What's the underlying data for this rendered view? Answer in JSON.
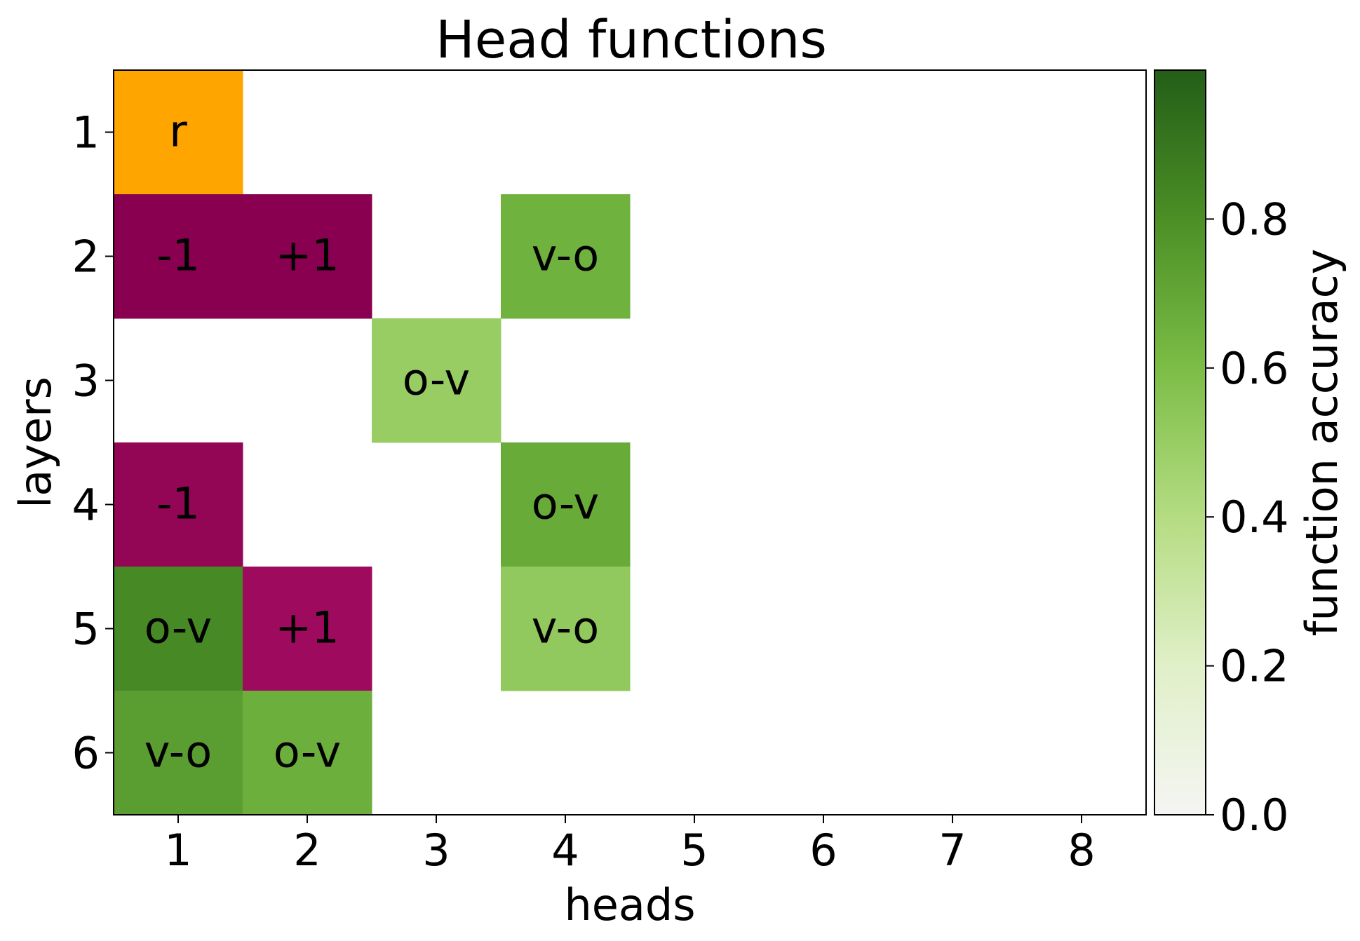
{
  "chart_data": {
    "type": "heatmap",
    "title": "Head functions",
    "xlabel": "heads",
    "ylabel": "layers",
    "x_ticks": [
      "1",
      "2",
      "3",
      "4",
      "5",
      "6",
      "7",
      "8"
    ],
    "y_ticks": [
      "1",
      "2",
      "3",
      "4",
      "5",
      "6"
    ],
    "colorbar": {
      "label": "function accuracy",
      "range": [
        0.0,
        1.0
      ],
      "ticks": [
        {
          "value": 0.0,
          "label": "0.0"
        },
        {
          "value": 0.2,
          "label": "0.2"
        },
        {
          "value": 0.4,
          "label": "0.4"
        },
        {
          "value": 0.6,
          "label": "0.6"
        },
        {
          "value": 0.8,
          "label": "0.8"
        }
      ],
      "stops": [
        {
          "v": 0.0,
          "color": "#f5f5f3"
        },
        {
          "v": 0.2,
          "color": "#e0f0c8"
        },
        {
          "v": 0.4,
          "color": "#b4dc82"
        },
        {
          "v": 0.6,
          "color": "#7cbd46"
        },
        {
          "v": 0.8,
          "color": "#4b8f26"
        },
        {
          "v": 1.0,
          "color": "#245e18"
        }
      ]
    },
    "category_colors": {
      "r": "#ffa500",
      "-1": "#8e0152",
      "+1": "#8e0152"
    },
    "cells": [
      {
        "layer": 1,
        "head": 1,
        "label": "r",
        "kind": "category",
        "color": "#ffa500"
      },
      {
        "layer": 2,
        "head": 1,
        "label": "-1",
        "kind": "category",
        "color": "#8a0050"
      },
      {
        "layer": 2,
        "head": 2,
        "label": "+1",
        "kind": "category",
        "color": "#8a0050"
      },
      {
        "layer": 2,
        "head": 4,
        "label": "v-o",
        "kind": "accuracy",
        "value": 0.65
      },
      {
        "layer": 3,
        "head": 3,
        "label": "o-v",
        "kind": "accuracy",
        "value": 0.5
      },
      {
        "layer": 4,
        "head": 1,
        "label": "-1",
        "kind": "category",
        "color": "#930655"
      },
      {
        "layer": 4,
        "head": 4,
        "label": "o-v",
        "kind": "accuracy",
        "value": 0.68
      },
      {
        "layer": 5,
        "head": 1,
        "label": "o-v",
        "kind": "accuracy",
        "value": 0.82
      },
      {
        "layer": 5,
        "head": 2,
        "label": "+1",
        "kind": "category",
        "color": "#9e0a5e"
      },
      {
        "layer": 5,
        "head": 4,
        "label": "v-o",
        "kind": "accuracy",
        "value": 0.52
      },
      {
        "layer": 6,
        "head": 1,
        "label": "v-o",
        "kind": "accuracy",
        "value": 0.74
      },
      {
        "layer": 6,
        "head": 2,
        "label": "o-v",
        "kind": "accuracy",
        "value": 0.66
      }
    ]
  }
}
